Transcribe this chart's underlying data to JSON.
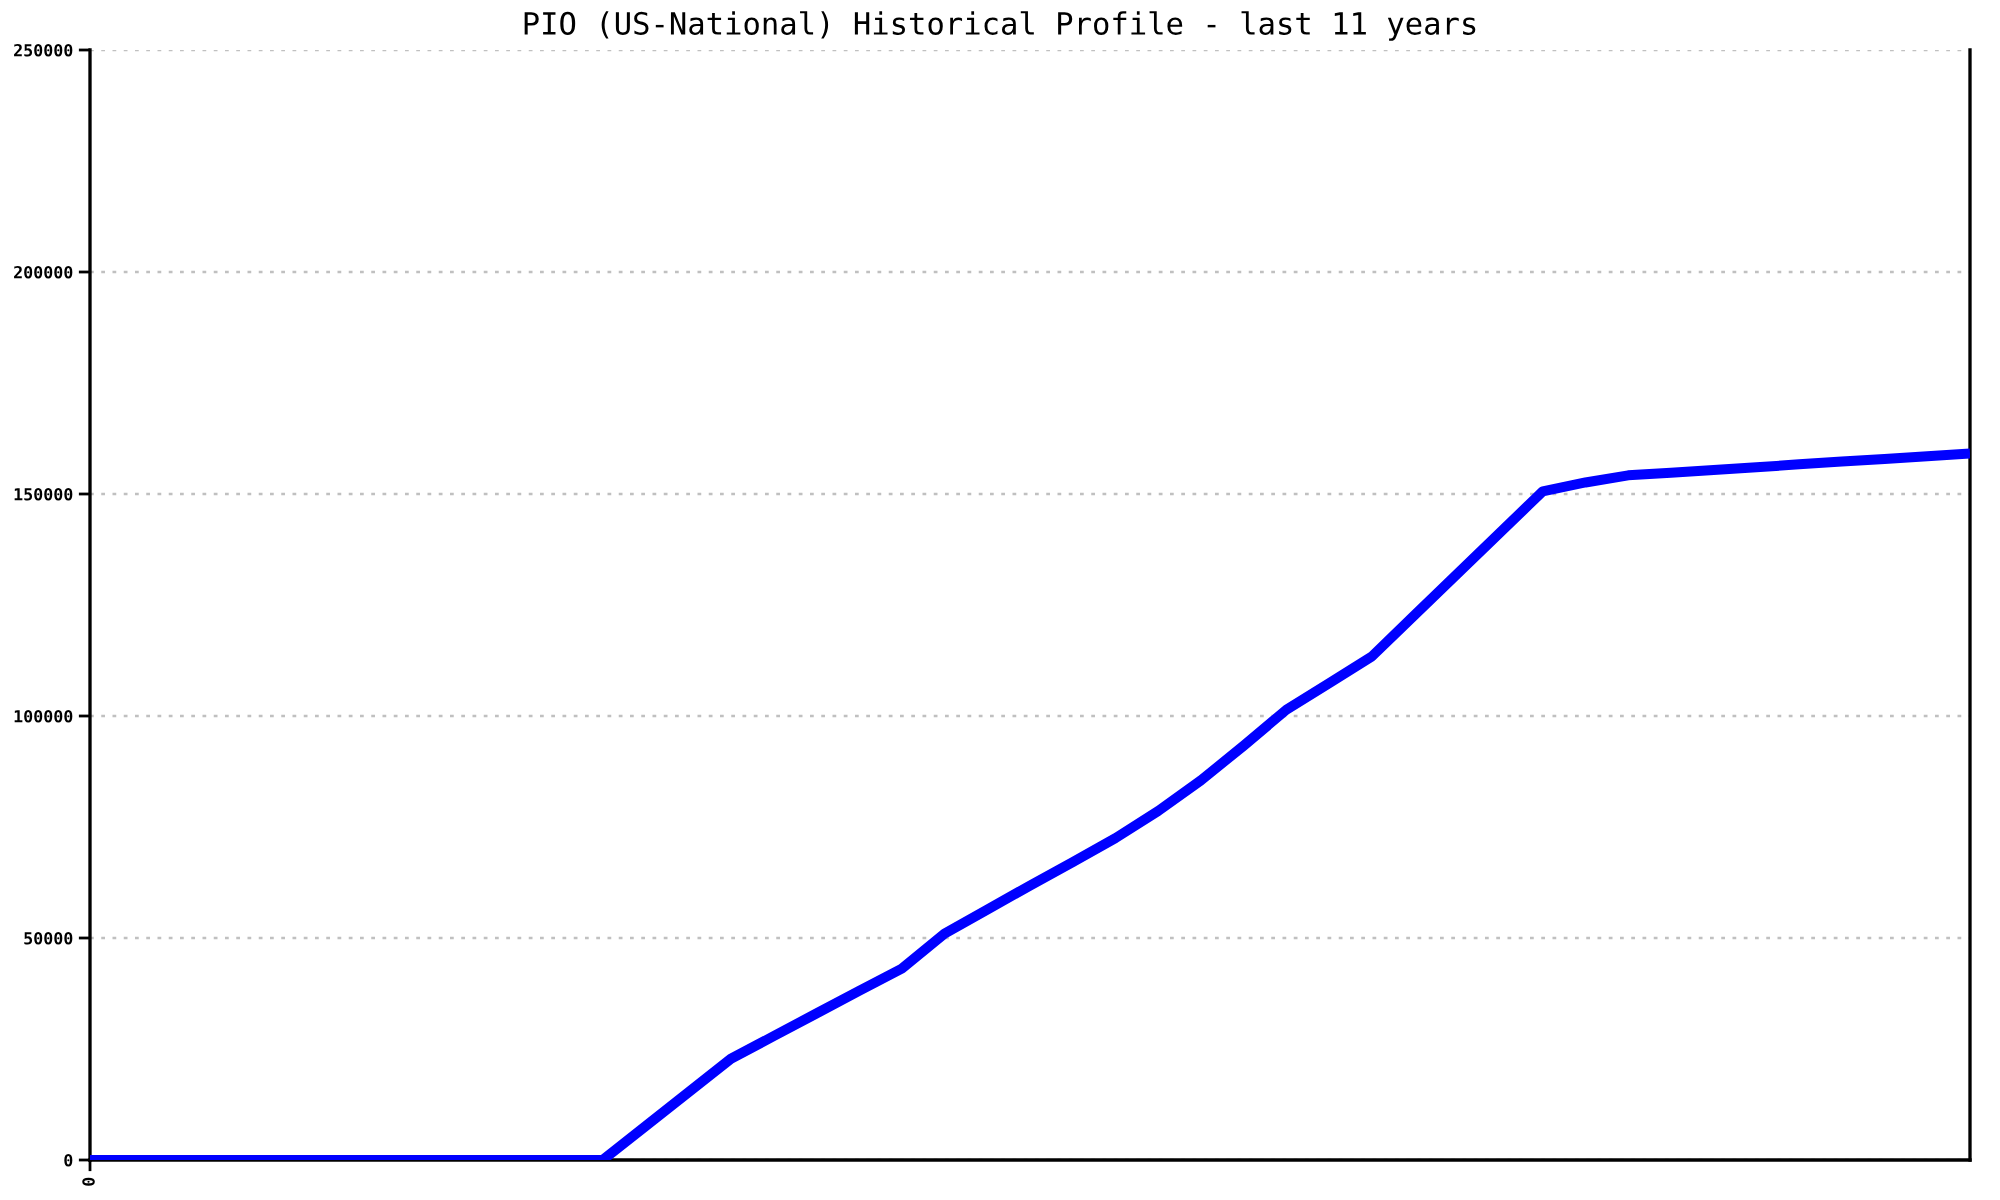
{
  "chart_data": {
    "type": "line",
    "title": "PIO (US-National) Historical Profile - last 11 years",
    "categories": [
      "0",
      null,
      null,
      null,
      null,
      null,
      null,
      null,
      null,
      null,
      null,
      null,
      null,
      null,
      null,
      null,
      null,
      null,
      null,
      null,
      null,
      null,
      null,
      null,
      null,
      null,
      null,
      null,
      null,
      null,
      null,
      null,
      null,
      null,
      null,
      null,
      null,
      null,
      null,
      null,
      null,
      null,
      null,
      null,
      null
    ],
    "series": [
      {
        "color": "#0000ff",
        "line_style": "solid",
        "values": [
          0,
          0,
          0,
          0,
          0,
          0,
          0,
          0,
          0,
          0,
          0,
          0,
          0,
          7600,
          15200,
          22800,
          27900,
          33000,
          38100,
          43100,
          51000,
          56400,
          61800,
          67100,
          72500,
          78600,
          85500,
          93300,
          101400,
          107400,
          113400,
          122700,
          132000,
          141300,
          150600,
          152600,
          154200,
          154800,
          155400,
          156000,
          156700,
          157300,
          157900,
          158500,
          159100
        ]
      }
    ],
    "ylim": [
      0,
      250000
    ],
    "yticks": [
      0,
      50000,
      100000,
      150000,
      200000,
      250000
    ],
    "grid": "y"
  }
}
